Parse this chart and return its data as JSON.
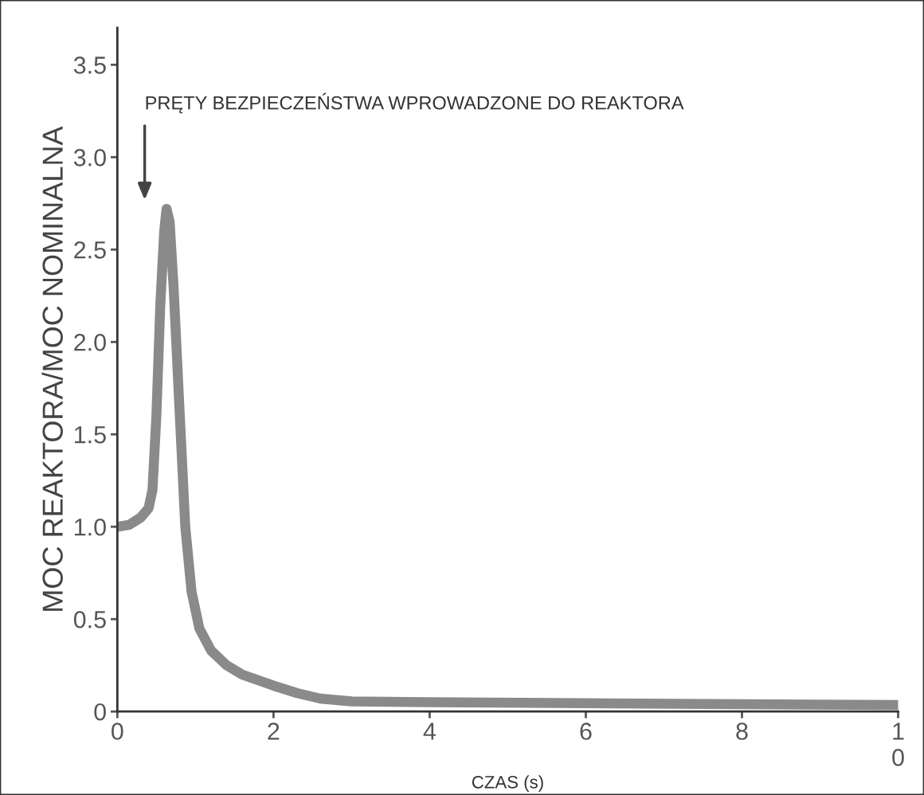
{
  "chart_data": {
    "type": "line",
    "xlabel": "CZAS (s)",
    "ylabel": "MOC REAKTORA/MOC NOMINALNA",
    "x": [
      0,
      0.15,
      0.3,
      0.4,
      0.45,
      0.5,
      0.55,
      0.6,
      0.63,
      0.67,
      0.72,
      0.8,
      0.87,
      0.95,
      1.05,
      1.2,
      1.4,
      1.6,
      2.0,
      2.3,
      2.6,
      3.0,
      4,
      6,
      8,
      10
    ],
    "series": [
      {
        "color": "#8a8a8a",
        "values": [
          1.0,
          1.01,
          1.05,
          1.1,
          1.2,
          1.6,
          2.2,
          2.6,
          2.72,
          2.65,
          2.3,
          1.6,
          1.0,
          0.65,
          0.45,
          0.33,
          0.25,
          0.2,
          0.14,
          0.1,
          0.07,
          0.055,
          0.05,
          0.045,
          0.04,
          0.035
        ]
      }
    ],
    "xlim": [
      0,
      10
    ],
    "xticks": [
      0,
      2,
      4,
      6,
      8,
      {
        "value": 10,
        "label": "1\n0"
      }
    ],
    "ylim": [
      0,
      3.7
    ],
    "yticks": [
      0,
      0.5,
      {
        "value": 1,
        "label": "1.0"
      },
      1.5,
      {
        "value": 2,
        "label": "2.0"
      },
      2.5,
      {
        "value": 3,
        "label": "3.0"
      },
      3.5
    ],
    "annotations": [
      "PRĘTY BEZPIECZEŃSTWA WPROWADZONE DO REAKTORA"
    ],
    "grid": false,
    "marker": "none",
    "line_style": "solid"
  }
}
